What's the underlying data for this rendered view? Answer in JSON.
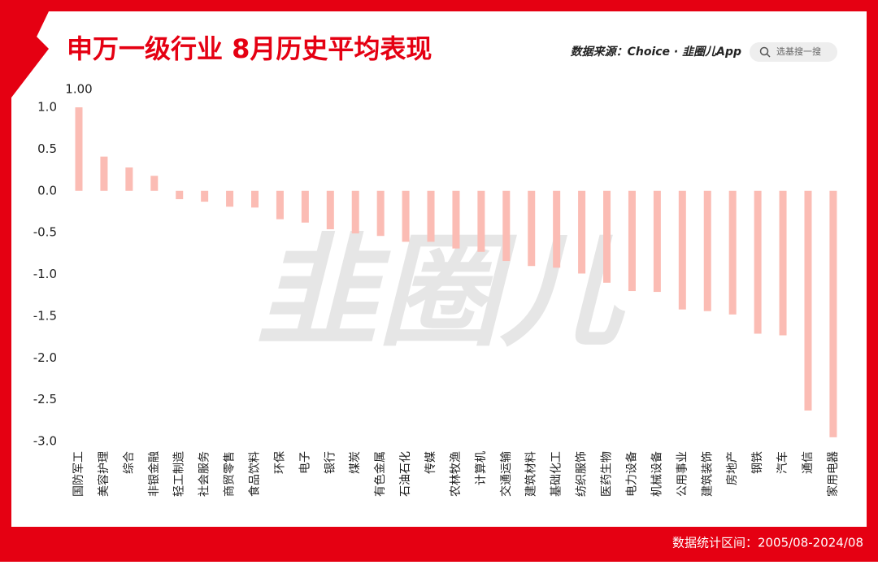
{
  "chart_data": {
    "type": "bar",
    "title": "申万一级行业 8月历史平均表现",
    "source": "数据来源：Choice · 韭圈儿App",
    "search": "选基搜一搜",
    "watermark": "韭圈儿",
    "footer": "数据统计区间：2005/08-2024/08",
    "categories": [
      "国防军工",
      "美容护理",
      "综合",
      "非银金融",
      "轻工制造",
      "社会服务",
      "商贸零售",
      "食品饮料",
      "环保",
      "电子",
      "银行",
      "煤炭",
      "有色金属",
      "石油石化",
      "传媒",
      "农林牧渔",
      "计算机",
      "交通运输",
      "建筑材料",
      "基础化工",
      "纺织服饰",
      "医药生物",
      "电力设备",
      "机械设备",
      "公用事业",
      "建筑装饰",
      "房地产",
      "钢铁",
      "汽车",
      "通信",
      "家用电器"
    ],
    "values": [
      1.0,
      0.41,
      0.28,
      0.18,
      -0.1,
      -0.13,
      -0.19,
      -0.2,
      -0.34,
      -0.38,
      -0.46,
      -0.51,
      -0.54,
      -0.61,
      -0.61,
      -0.69,
      -0.73,
      -0.84,
      -0.9,
      -0.92,
      -0.99,
      -1.1,
      -1.2,
      -1.21,
      -1.42,
      -1.44,
      -1.48,
      -1.71,
      -1.73,
      -2.63,
      -2.95
    ],
    "value_labels": [
      "1.00",
      null,
      null,
      null,
      null,
      null,
      null,
      null,
      null,
      null,
      null,
      null,
      null,
      null,
      null,
      null,
      null,
      null,
      null,
      null,
      null,
      null,
      null,
      null,
      null,
      null,
      null,
      null,
      null,
      null,
      null
    ],
    "color": "#fbbcb4",
    "ylim": [
      -3.0,
      1.0
    ],
    "yticks": [
      {
        "value": 1.0,
        "label": "1.0"
      },
      {
        "value": 0.5,
        "label": "0.5"
      },
      {
        "value": 0.0,
        "label": "0.0"
      },
      {
        "value": -0.5,
        "label": "-0.5"
      },
      {
        "value": -1.0,
        "label": "-1.0"
      },
      {
        "value": -1.5,
        "label": "-1.5"
      },
      {
        "value": -2.0,
        "label": "-2.0"
      },
      {
        "value": -2.5,
        "label": "-2.5"
      },
      {
        "value": -3.0,
        "label": "-3.0"
      }
    ],
    "grid": false
  }
}
